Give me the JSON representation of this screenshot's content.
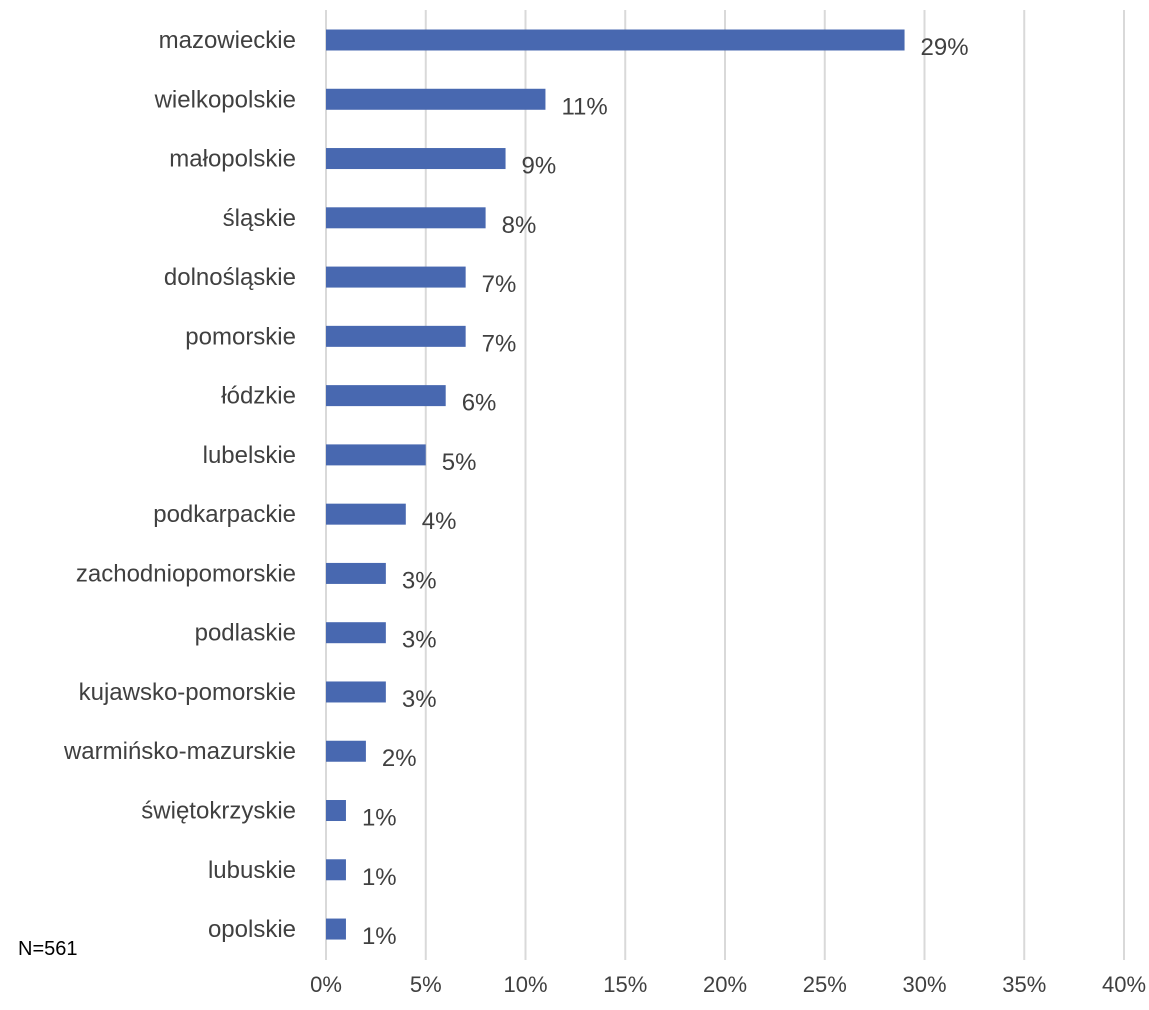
{
  "chart_data": {
    "type": "bar",
    "orientation": "horizontal",
    "categories": [
      "mazowieckie",
      "wielkopolskie",
      "małopolskie",
      "śląskie",
      "dolnośląskie",
      "pomorskie",
      "łódzkie",
      "lubelskie",
      "podkarpackie",
      "zachodniopomorskie",
      "podlaskie",
      "kujawsko-pomorskie",
      "warmińsko-mazurskie",
      "świętokrzyskie",
      "lubuskie",
      "opolskie"
    ],
    "values": [
      29,
      11,
      9,
      8,
      7,
      7,
      6,
      5,
      4,
      3,
      3,
      3,
      2,
      1,
      1,
      1
    ],
    "data_labels": [
      "29%",
      "11%",
      "9%",
      "8%",
      "7%",
      "7%",
      "6%",
      "5%",
      "4%",
      "3%",
      "3%",
      "3%",
      "2%",
      "1%",
      "1%",
      "1%"
    ],
    "x_ticks": [
      0,
      5,
      10,
      15,
      20,
      25,
      30,
      35,
      40
    ],
    "x_tick_labels": [
      "0%",
      "5%",
      "10%",
      "15%",
      "20%",
      "25%",
      "30%",
      "35%",
      "40%"
    ],
    "xlim": [
      0,
      40
    ],
    "title": "",
    "xlabel": "",
    "ylabel": "",
    "grid": "vertical",
    "legend": "none",
    "bar_color": "#4868b0",
    "grid_color": "#d9d9d9",
    "text_color": "#404040"
  },
  "footnote": "N=561"
}
